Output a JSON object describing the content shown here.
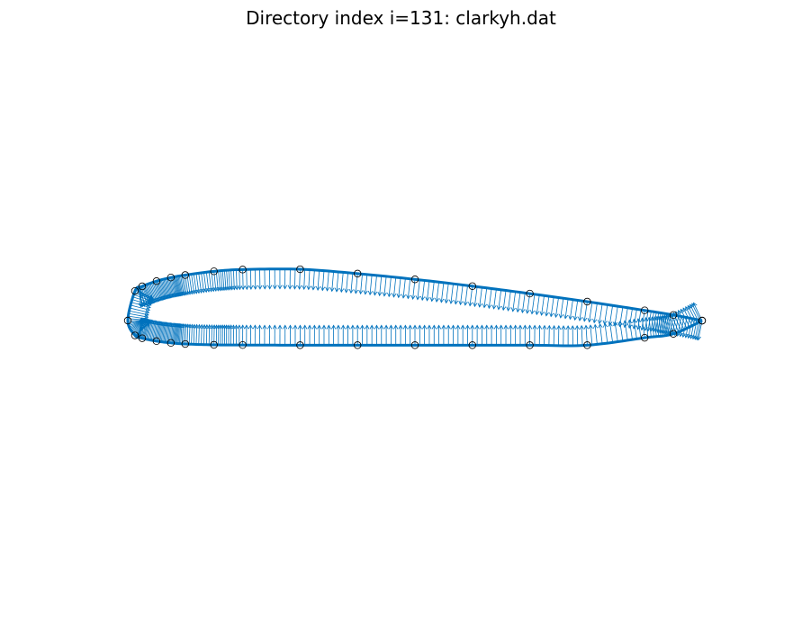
{
  "chart_data": {
    "type": "line",
    "title": "Directory index i=131: clarkyh.dat",
    "xlabel": "",
    "ylabel": "",
    "grid": false,
    "axes_visible": false,
    "xlim": [
      -0.03,
      1.03
    ],
    "ylim": [
      -0.42,
      0.42
    ],
    "colors": {
      "outline": "#0072BD",
      "vectors": "#0072BD",
      "markers": "#000000"
    },
    "series": [
      {
        "x": [
          1.0,
          0.95,
          0.9,
          0.8,
          0.7,
          0.6,
          0.5,
          0.4,
          0.3,
          0.2,
          0.15,
          0.1,
          0.075,
          0.05,
          0.025,
          0.0125,
          0.0,
          0.0125,
          0.025,
          0.05,
          0.075,
          0.1,
          0.15,
          0.2,
          0.3,
          0.4,
          0.5,
          0.6,
          0.7,
          0.8,
          0.9,
          0.95,
          1.0
        ],
        "y": [
          0.0,
          0.0097,
          0.0177,
          0.0329,
          0.0469,
          0.0599,
          0.0717,
          0.0817,
          0.0893,
          0.0888,
          0.0857,
          0.0792,
          0.0749,
          0.0686,
          0.0596,
          0.0515,
          0.0,
          -0.0259,
          -0.0308,
          -0.0358,
          -0.0389,
          -0.0408,
          -0.0423,
          -0.0426,
          -0.0429,
          -0.0429,
          -0.0429,
          -0.0429,
          -0.0429,
          -0.0429,
          -0.03,
          -0.0231,
          -0.0003
        ]
      }
    ]
  }
}
